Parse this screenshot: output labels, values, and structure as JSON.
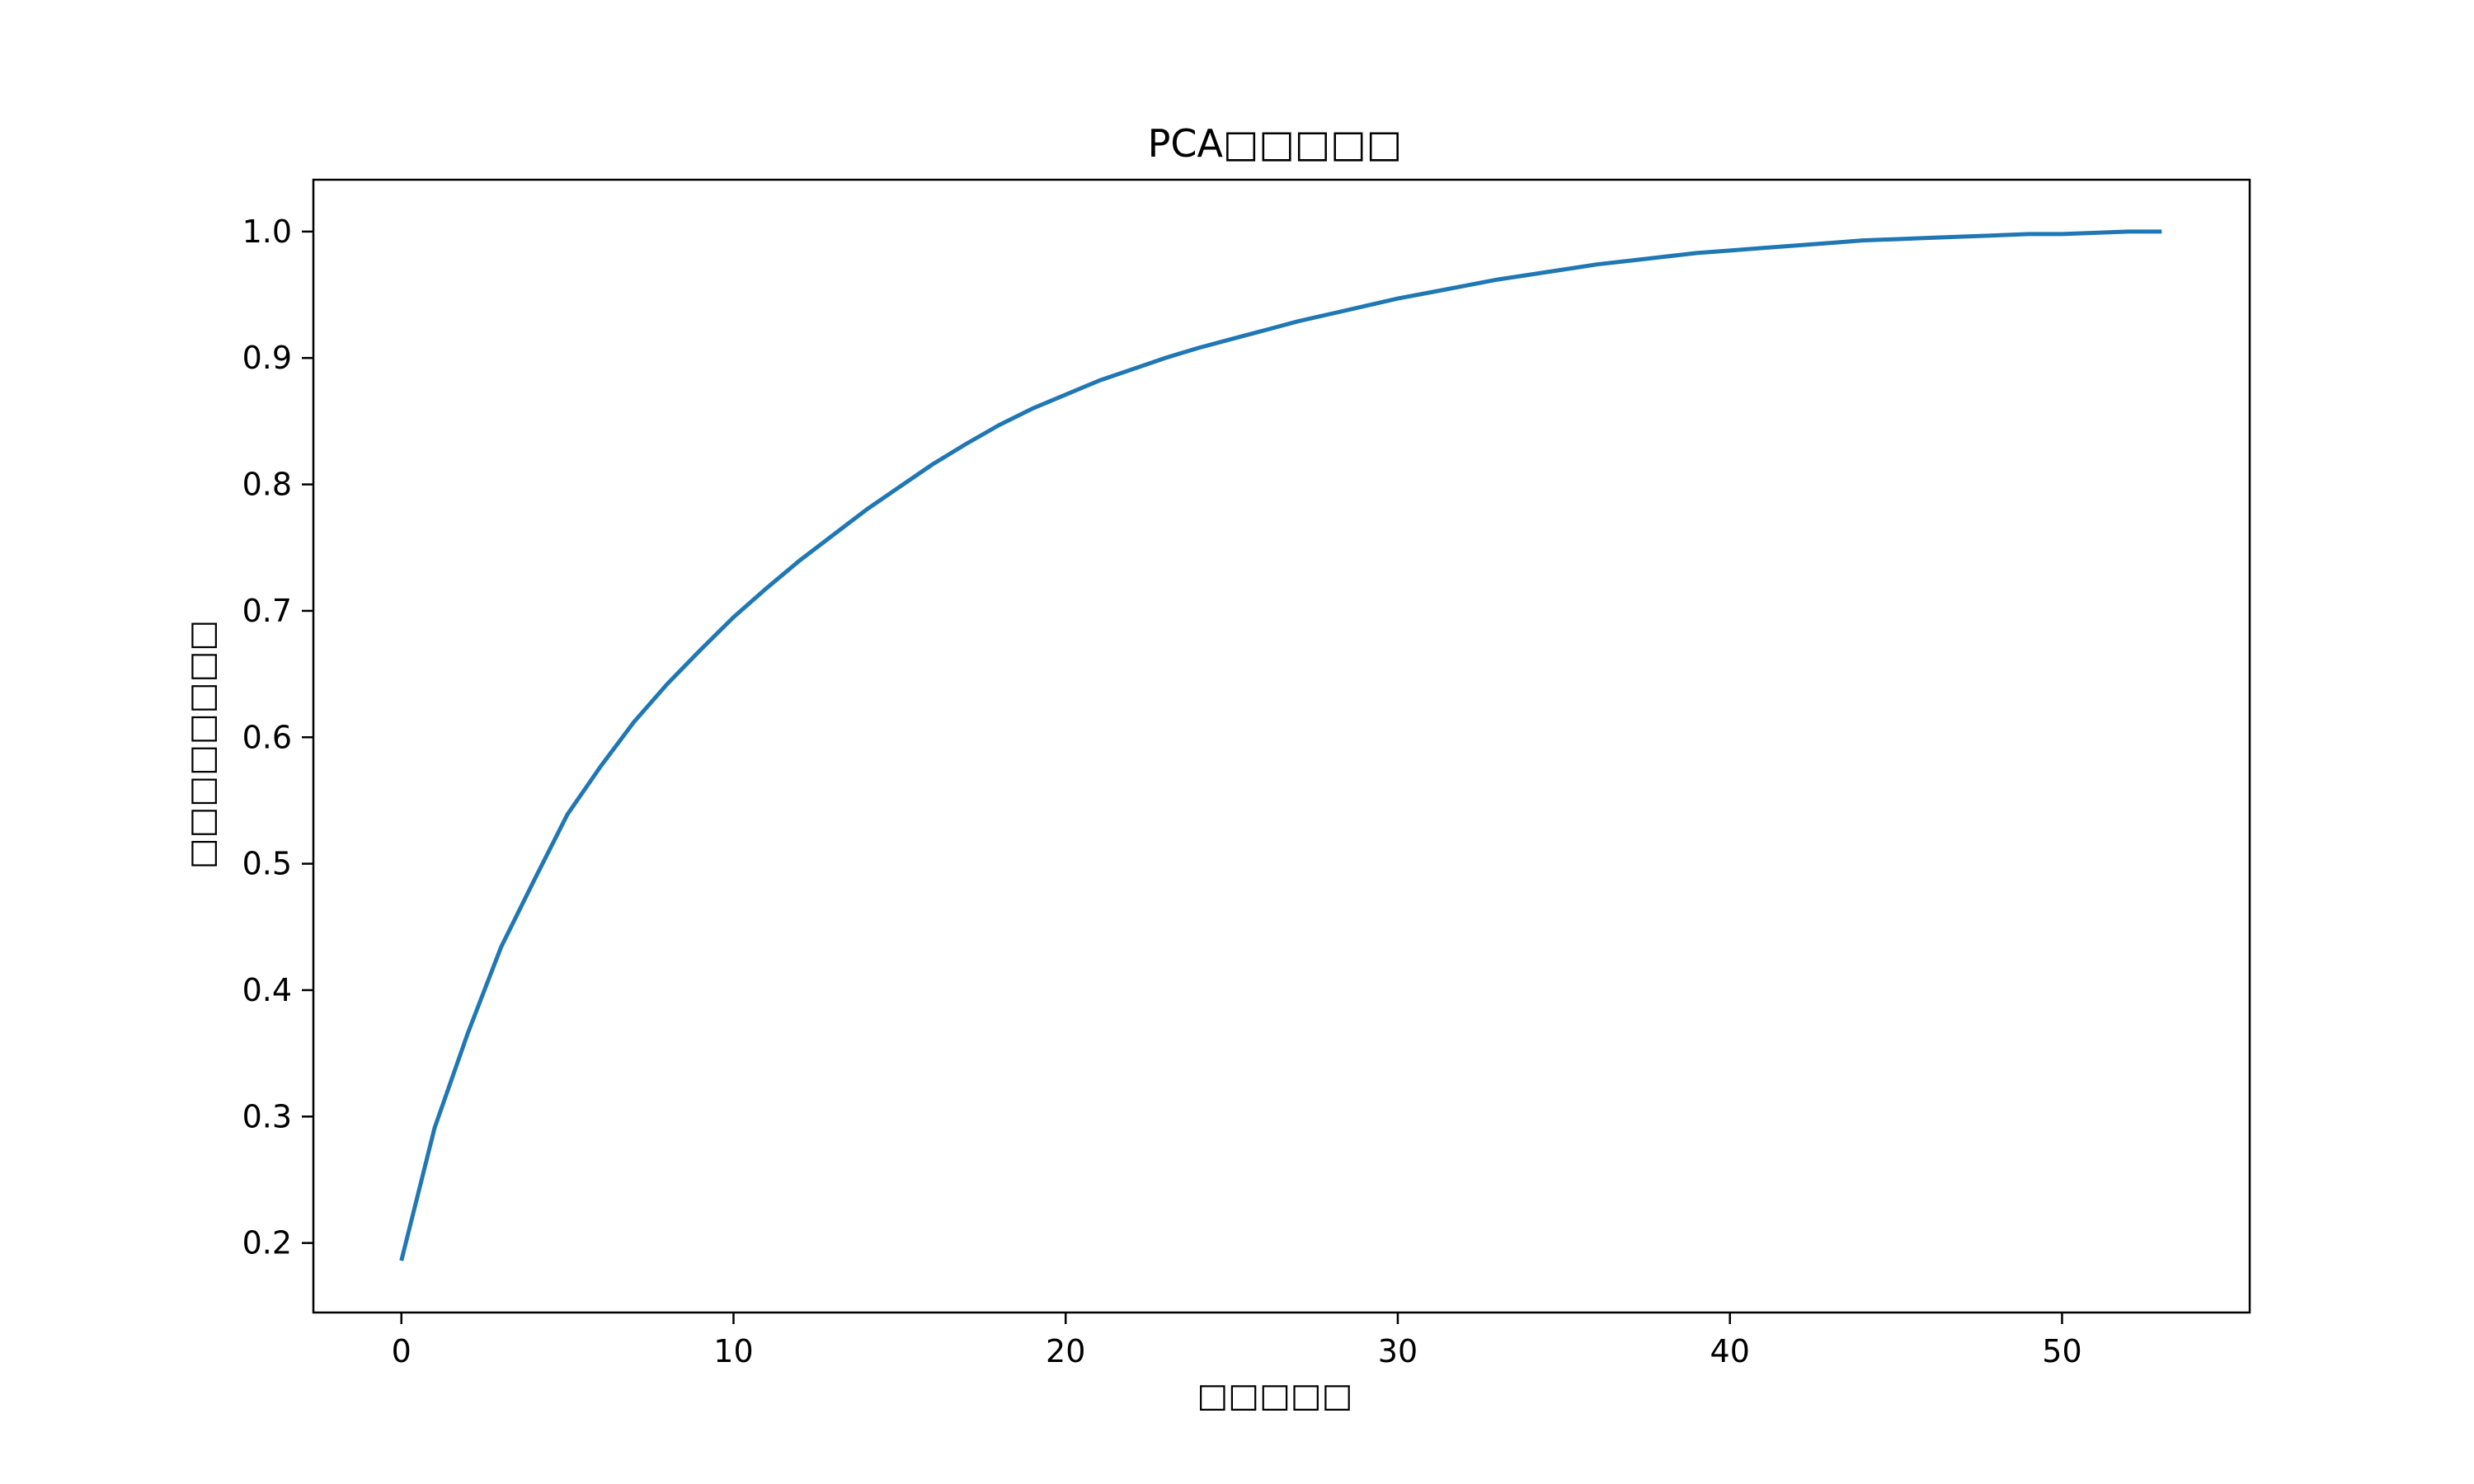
{
  "colors": {
    "line": "#1f77b4",
    "axes": "#000000",
    "background": "#ffffff"
  },
  "chart_data": {
    "type": "line",
    "title": "PCA□□□□□",
    "xlabel": "□□□□□",
    "ylabel": "□□□□□□□□",
    "xlim": [
      -2.65,
      55.65
    ],
    "ylim": [
      0.145,
      1.041
    ],
    "xticks": [
      0,
      10,
      20,
      30,
      40,
      50
    ],
    "xtick_labels": [
      "0",
      "10",
      "20",
      "30",
      "40",
      "50"
    ],
    "yticks": [
      0.2,
      0.3,
      0.4,
      0.5,
      0.6,
      0.7,
      0.8,
      0.9,
      1.0
    ],
    "ytick_labels": [
      "0.2",
      "0.3",
      "0.4",
      "0.5",
      "0.6",
      "0.7",
      "0.8",
      "0.9",
      "1.0"
    ],
    "grid": false,
    "legend": "none",
    "series": [
      {
        "color": "#1f77b4",
        "x": [
          0,
          1,
          2,
          3,
          4,
          5,
          6,
          7,
          8,
          9,
          10,
          11,
          12,
          13,
          14,
          15,
          16,
          17,
          18,
          19,
          20,
          21,
          22,
          23,
          24,
          25,
          26,
          27,
          28,
          29,
          30,
          31,
          32,
          33,
          34,
          35,
          36,
          37,
          38,
          39,
          40,
          41,
          42,
          43,
          44,
          45,
          46,
          47,
          48,
          49,
          50,
          51,
          52,
          53
        ],
        "y": [
          0.186,
          0.291,
          0.366,
          0.434,
          0.487,
          0.539,
          0.577,
          0.612,
          0.642,
          0.669,
          0.695,
          0.718,
          0.74,
          0.76,
          0.78,
          0.798,
          0.816,
          0.832,
          0.847,
          0.86,
          0.871,
          0.882,
          0.891,
          0.9,
          0.908,
          0.915,
          0.922,
          0.929,
          0.935,
          0.941,
          0.947,
          0.952,
          0.957,
          0.962,
          0.966,
          0.97,
          0.974,
          0.977,
          0.98,
          0.983,
          0.985,
          0.987,
          0.989,
          0.991,
          0.993,
          0.994,
          0.995,
          0.996,
          0.997,
          0.998,
          0.998,
          0.999,
          1.0,
          1.0
        ]
      }
    ]
  }
}
